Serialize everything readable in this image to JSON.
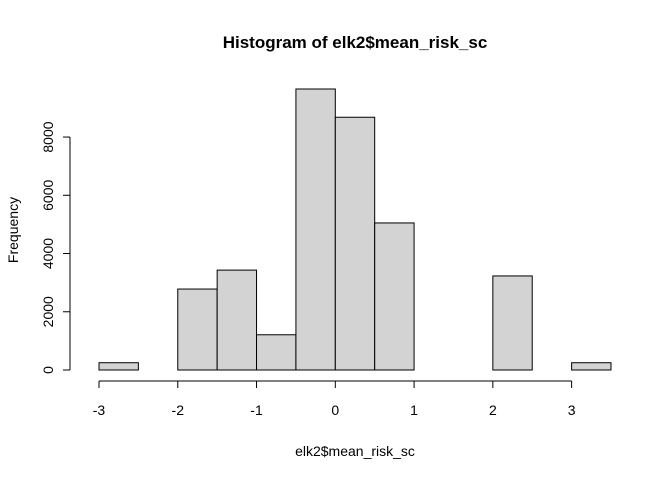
{
  "chart_data": {
    "type": "bar",
    "title": "Histogram of elk2$mean_risk_sc",
    "xlabel": "elk2$mean_risk_sc",
    "ylabel": "Frequency",
    "bins": [
      {
        "x0": -3.0,
        "x1": -2.5,
        "count": 250
      },
      {
        "x0": -2.5,
        "x1": -2.0,
        "count": 0
      },
      {
        "x0": -2.0,
        "x1": -1.5,
        "count": 2780
      },
      {
        "x0": -1.5,
        "x1": -1.0,
        "count": 3430
      },
      {
        "x0": -1.0,
        "x1": -0.5,
        "count": 1210
      },
      {
        "x0": -0.5,
        "x1": 0.0,
        "count": 9650
      },
      {
        "x0": 0.0,
        "x1": 0.5,
        "count": 8680
      },
      {
        "x0": 0.5,
        "x1": 1.0,
        "count": 5050
      },
      {
        "x0": 1.0,
        "x1": 1.5,
        "count": 0
      },
      {
        "x0": 1.5,
        "x1": 2.0,
        "count": 0
      },
      {
        "x0": 2.0,
        "x1": 2.5,
        "count": 3230
      },
      {
        "x0": 2.5,
        "x1": 3.0,
        "count": 0
      },
      {
        "x0": 3.0,
        "x1": 3.5,
        "count": 250
      }
    ],
    "xlim": [
      -3,
      3.5
    ],
    "ylim": [
      0,
      9650
    ],
    "xticks": [
      -3,
      -2,
      -1,
      0,
      1,
      2,
      3
    ],
    "yticks": [
      0,
      2000,
      4000,
      6000,
      8000
    ],
    "bar_color": "#d3d3d3",
    "edge_color": "#000000",
    "grid": false
  }
}
